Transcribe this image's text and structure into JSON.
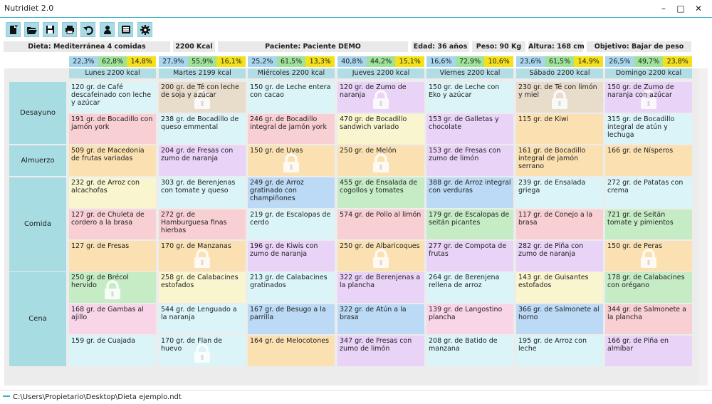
{
  "window": {
    "title": "Nutridiet 2.0",
    "minimize": "–",
    "maximize": "□",
    "close": "✕"
  },
  "toolbar": [
    {
      "name": "new-document-icon"
    },
    {
      "name": "open-folder-icon"
    },
    {
      "name": "save-icon"
    },
    {
      "name": "print-icon"
    },
    {
      "name": "undo-icon"
    },
    {
      "name": "patient-icon"
    },
    {
      "name": "database-icon"
    },
    {
      "name": "settings-gear-icon"
    }
  ],
  "info": {
    "diet": "Dieta: Mediterránea 4 comidas",
    "kcal": "2200 Kcal",
    "patient": "Paciente: Paciente DEMO",
    "age": "Edad: 36 años",
    "weight": "Peso: 90 Kg",
    "height": "Altura: 168 cm",
    "goal": "Objetivo: Bajar de peso"
  },
  "macro_colors": {
    "protein": "#a9d6ef",
    "carbs": "#9fe39a",
    "fat": "#f4e11b"
  },
  "days": [
    {
      "label": "Lunes 2200 kcal",
      "macros": [
        "22,3%",
        "62,8%",
        "14,8%"
      ]
    },
    {
      "label": "Martes 2199 kcal",
      "macros": [
        "27,9%",
        "55,9%",
        "16,1%"
      ]
    },
    {
      "label": "Miércoles 2200 kcal",
      "macros": [
        "25,2%",
        "61,5%",
        "13,3%"
      ]
    },
    {
      "label": "Jueves 2200 kcal",
      "macros": [
        "40,8%",
        "44,2%",
        "15,1%"
      ]
    },
    {
      "label": "Viernes 2200 kcal",
      "macros": [
        "16,6%",
        "72,9%",
        "10,6%"
      ]
    },
    {
      "label": "Sábado 2200 kcal",
      "macros": [
        "23,6%",
        "61,5%",
        "14,9%"
      ]
    },
    {
      "label": "Domingo 2200 kcal",
      "macros": [
        "26,5%",
        "49,7%",
        "23,8%"
      ]
    }
  ],
  "meals": [
    {
      "label": "Desayuno",
      "rows": [
        [
          {
            "text": "120 gr. de Café descafeinado con leche y azúcar",
            "color": "#daf4f8",
            "locked": false
          },
          {
            "text": "200 gr. de Té con leche de soja y azúcar",
            "color": "#e8dccb",
            "locked": true
          },
          {
            "text": "150 gr. de Leche entera con cacao",
            "color": "#daf4f8",
            "locked": false
          },
          {
            "text": "120 gr. de Zumo de naranja",
            "color": "#e9d3f7",
            "locked": true
          },
          {
            "text": "150 gr. de Leche con Eko y azúcar",
            "color": "#daf4f8",
            "locked": false
          },
          {
            "text": "230 gr. de Té con limón y miel",
            "color": "#e8dccb",
            "locked": true
          },
          {
            "text": "150 gr. de Zumo de naranja con azúcar",
            "color": "#e9d3f7",
            "locked": true
          }
        ],
        [
          {
            "text": "191 gr. de Bocadillo con jamón york",
            "color": "#f8cfd3",
            "locked": false
          },
          {
            "text": "238 gr. de Bocadillo de queso emmental",
            "color": "#daf4f8",
            "locked": false
          },
          {
            "text": "246 gr. de Bocadillo integral de jamón york",
            "color": "#f8cfd3",
            "locked": false
          },
          {
            "text": "470 gr. de Bocadillo sandwich variado",
            "color": "#f8f5cf",
            "locked": false
          },
          {
            "text": "153 gr. de Galletas y chocolate",
            "color": "#e9d3f7",
            "locked": false
          },
          {
            "text": "115 gr. de Kiwi",
            "color": "#fbe1b2",
            "locked": false
          },
          {
            "text": "315 gr. de Bocadillo integral de atún y lechuga",
            "color": "#daf4f8",
            "locked": false
          }
        ]
      ]
    },
    {
      "label": "Almuerzo",
      "rows": [
        [
          {
            "text": "509 gr. de Macedonia de frutas variadas",
            "color": "#fbe1b2",
            "locked": false
          },
          {
            "text": "204 gr. de Fresas con zumo de naranja",
            "color": "#e9d3f7",
            "locked": false
          },
          {
            "text": "150 gr. de Uvas",
            "color": "#fbe1b2",
            "locked": true
          },
          {
            "text": "250 gr. de Melón",
            "color": "#fbe1b2",
            "locked": true
          },
          {
            "text": "153 gr. de Fresas con zumo de limón",
            "color": "#e9d3f7",
            "locked": false
          },
          {
            "text": "161 gr. de Bocadillo integral de jamón serrano",
            "color": "#fbe1b2",
            "locked": false
          },
          {
            "text": "166 gr. de Nísperos",
            "color": "#fbe1b2",
            "locked": false
          }
        ]
      ]
    },
    {
      "label": "Comida",
      "rows": [
        [
          {
            "text": "232 gr. de Arroz con alcachofas",
            "color": "#f8f5cf",
            "locked": false
          },
          {
            "text": "303 gr. de Berenjenas con tomate y queso",
            "color": "#daf4f8",
            "locked": false
          },
          {
            "text": "249 gr. de Arroz gratinado con champiñones",
            "color": "#bcdaf5",
            "locked": false
          },
          {
            "text": "455 gr. de Ensalada de cogollos y tomates",
            "color": "#c6ecc6",
            "locked": false
          },
          {
            "text": "388 gr. de Arroz integral con verduras",
            "color": "#bcdaf5",
            "locked": false
          },
          {
            "text": "239 gr. de Ensalada griega",
            "color": "#daf4f8",
            "locked": false
          },
          {
            "text": "272 gr. de Patatas con crema",
            "color": "#daf4f8",
            "locked": false
          }
        ],
        [
          {
            "text": "127 gr. de Chuleta de cordero a la brasa",
            "color": "#f8cfd3",
            "locked": false
          },
          {
            "text": "272 gr. de Hamburguesa finas hierbas",
            "color": "#f8cfd3",
            "locked": false
          },
          {
            "text": "219 gr. de Escalopas de cerdo",
            "color": "#daf4f8",
            "locked": false
          },
          {
            "text": "574 gr. de Pollo al limón",
            "color": "#f8cfd3",
            "locked": false
          },
          {
            "text": "179 gr. de Escalopas de seitán picantes",
            "color": "#c6ecc6",
            "locked": false
          },
          {
            "text": "117 gr. de Conejo a la brasa",
            "color": "#f8cfd3",
            "locked": false
          },
          {
            "text": "721 gr. de Seitán tomate y pimientos",
            "color": "#c6ecc6",
            "locked": false
          }
        ],
        [
          {
            "text": "127 gr. de Fresas",
            "color": "#fbe1b2",
            "locked": false
          },
          {
            "text": "170 gr. de Manzanas",
            "color": "#fbe1b2",
            "locked": true
          },
          {
            "text": "196 gr. de Kiwis con zumo de naranja",
            "color": "#e9d3f7",
            "locked": false
          },
          {
            "text": "250 gr. de Albaricoques",
            "color": "#fbe1b2",
            "locked": true
          },
          {
            "text": "277 gr. de Compota de frutas",
            "color": "#e9d3f7",
            "locked": false
          },
          {
            "text": "282 gr. de Piña con zumo de naranja",
            "color": "#e9d3f7",
            "locked": false
          },
          {
            "text": "150 gr. de Peras",
            "color": "#fbe1b2",
            "locked": true
          }
        ]
      ]
    },
    {
      "label": "Cena",
      "rows": [
        [
          {
            "text": "250 gr. de Brécol hervido",
            "color": "#c6ecc6",
            "locked": true
          },
          {
            "text": "258 gr. de Calabacines estofados",
            "color": "#f8f5cf",
            "locked": false
          },
          {
            "text": "213 gr. de Calabacines gratinados",
            "color": "#daf4f8",
            "locked": false
          },
          {
            "text": "322 gr. de Berenjenas a la plancha",
            "color": "#e9d3f7",
            "locked": false
          },
          {
            "text": "264 gr. de Berenjena rellena de arroz",
            "color": "#daf4f8",
            "locked": false
          },
          {
            "text": "143 gr. de Guisantes estofados",
            "color": "#f8f5cf",
            "locked": false
          },
          {
            "text": "178 gr. de Calabacines con orégano",
            "color": "#c6ecc6",
            "locked": false
          }
        ],
        [
          {
            "text": "168 gr. de Gambas al ajillo",
            "color": "#f9d5ea",
            "locked": false
          },
          {
            "text": "544 gr. de Lenguado a la naranja",
            "color": "#daf4f8",
            "locked": false
          },
          {
            "text": "167 gr. de Besugo a la parrilla",
            "color": "#bcdaf5",
            "locked": false
          },
          {
            "text": "322 gr. de Atún a la brasa",
            "color": "#bcdaf5",
            "locked": false
          },
          {
            "text": "139 gr. de Langostino plancha",
            "color": "#f9d5ea",
            "locked": false
          },
          {
            "text": "366 gr. de Salmonete al horno",
            "color": "#bcdaf5",
            "locked": false
          },
          {
            "text": "344 gr. de Salmonete a la plancha",
            "color": "#f8cfd3",
            "locked": false
          }
        ],
        [
          {
            "text": "159 gr. de Cuajada",
            "color": "#daf4f8",
            "locked": false
          },
          {
            "text": "170 gr. de Flan de huevo",
            "color": "#daf4f8",
            "locked": true
          },
          {
            "text": "164 gr. de Melocotones",
            "color": "#fbe1b2",
            "locked": false
          },
          {
            "text": "347 gr. de Fresas con zumo de limón",
            "color": "#e9d3f7",
            "locked": false
          },
          {
            "text": "208 gr. de Batido de manzana",
            "color": "#daf4f8",
            "locked": false
          },
          {
            "text": "195 gr. de Arroz con leche",
            "color": "#daf4f8",
            "locked": false
          },
          {
            "text": "166 gr. de Piña en almíbar",
            "color": "#e9d3f7",
            "locked": false
          }
        ]
      ]
    }
  ],
  "status": {
    "path": "C:\\Users\\Propietario\\Desktop\\Dieta ejemplo.ndt"
  }
}
